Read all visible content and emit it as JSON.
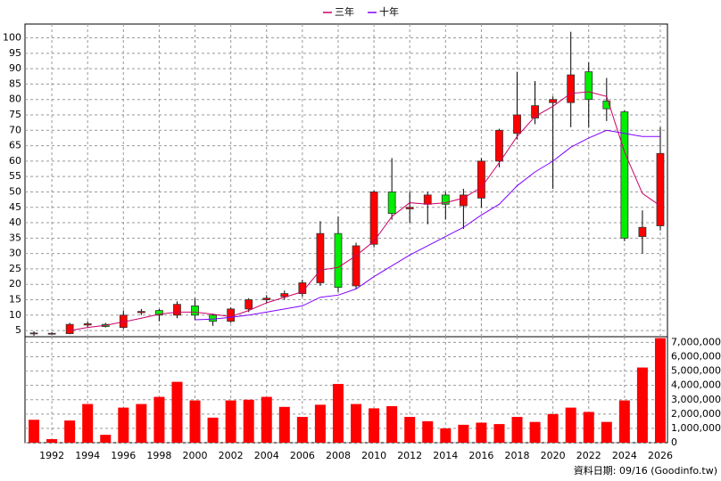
{
  "chart_data": [
    {
      "type": "candlestick",
      "x": [
        1991,
        1992,
        1993,
        1994,
        1995,
        1996,
        1997,
        1998,
        1999,
        2000,
        2001,
        2002,
        2003,
        2004,
        2005,
        2006,
        2007,
        2008,
        2009,
        2010,
        2011,
        2012,
        2013,
        2014,
        2015,
        2016,
        2017,
        2018,
        2019,
        2020,
        2021,
        2022,
        2023,
        2024,
        2025,
        2026
      ],
      "open": [
        4,
        4,
        4,
        6.8,
        7,
        6,
        10.8,
        11.5,
        10,
        13,
        10,
        8,
        12,
        15,
        16,
        17,
        20.5,
        36.5,
        19.5,
        33,
        50,
        44.5,
        46,
        49,
        45.5,
        48,
        60,
        69,
        74,
        79,
        79,
        89,
        79.5,
        76,
        35.5,
        39
      ],
      "high": [
        4.8,
        4.5,
        7.5,
        8,
        7.5,
        11.5,
        12,
        12,
        14.5,
        15.5,
        10.5,
        12.5,
        15.5,
        16.5,
        18,
        21.5,
        40.5,
        42,
        33.5,
        50.5,
        61,
        50,
        50,
        50,
        51,
        61,
        70.5,
        89,
        86,
        81,
        102,
        92,
        87,
        76.5,
        44,
        71
      ],
      "low": [
        3.3,
        3.7,
        3.8,
        6,
        6,
        5.5,
        10,
        8,
        9,
        8.5,
        6.5,
        7.5,
        11,
        14,
        15,
        16,
        19.5,
        17.5,
        18.5,
        32,
        41,
        40,
        39.5,
        41,
        38,
        45,
        58,
        67,
        72,
        51,
        71,
        71,
        73,
        34,
        30,
        37.5
      ],
      "close": [
        4.2,
        4.1,
        7,
        7.2,
        6.3,
        10,
        11.2,
        10,
        13.5,
        10,
        8,
        12,
        15,
        15.5,
        17,
        20.5,
        36.5,
        19,
        32.5,
        50,
        43,
        45,
        49,
        46,
        49,
        60,
        70,
        75,
        78,
        80,
        88,
        80,
        77,
        35,
        38.5,
        62.5
      ],
      "up_color": "#ff0000",
      "down_color": "#00ee00",
      "series": [
        {
          "name": "三年",
          "color": "#cc0066",
          "values": [
            null,
            null,
            5,
            6,
            6.7,
            7.8,
            9,
            10.3,
            11,
            11,
            10.3,
            9.5,
            11.5,
            14,
            15.8,
            17.6,
            24.6,
            25.5,
            29.3,
            34,
            42,
            46.5,
            46,
            46.5,
            48,
            51.5,
            59.5,
            68,
            74.5,
            77.8,
            82,
            82.5,
            81,
            63,
            49.5,
            45.5
          ]
        },
        {
          "name": "十年",
          "color": "#8000ff",
          "values": [
            null,
            null,
            null,
            null,
            null,
            null,
            null,
            null,
            null,
            8.5,
            8.7,
            9.3,
            10,
            11,
            12,
            13,
            15.8,
            16.5,
            18.5,
            22.5,
            26,
            29.5,
            32.5,
            35.5,
            38.5,
            42.5,
            46,
            52,
            56.5,
            60,
            64.5,
            67.5,
            70,
            69,
            68,
            68
          ]
        }
      ],
      "xlim": [
        1990.5,
        2026.4
      ],
      "ylim": [
        3,
        104.5
      ],
      "yticks": [
        5,
        10,
        15,
        20,
        25,
        30,
        35,
        40,
        45,
        50,
        55,
        60,
        65,
        70,
        75,
        80,
        85,
        90,
        95,
        100
      ],
      "grid": true,
      "legend": "top"
    },
    {
      "type": "bar",
      "x": [
        1991,
        1992,
        1993,
        1994,
        1995,
        1996,
        1997,
        1998,
        1999,
        2000,
        2001,
        2002,
        2003,
        2004,
        2005,
        2006,
        2007,
        2008,
        2009,
        2010,
        2011,
        2012,
        2013,
        2014,
        2015,
        2016,
        2017,
        2018,
        2019,
        2020,
        2021,
        2022,
        2023,
        2024,
        2025,
        2026
      ],
      "values": [
        1600000,
        250000,
        1550000,
        2700000,
        550000,
        2450000,
        2700000,
        3200000,
        4250000,
        2950000,
        1750000,
        2950000,
        3000000,
        3200000,
        2500000,
        1800000,
        2650000,
        4100000,
        2700000,
        2400000,
        2550000,
        1800000,
        1500000,
        1000000,
        1250000,
        1400000,
        1300000,
        1800000,
        1450000,
        2000000,
        2450000,
        2150000,
        1450000,
        2950000,
        5250000,
        7300000
      ],
      "color": "#ff0000",
      "xlim": [
        1990.5,
        2026.4
      ],
      "xticks": [
        1992,
        1994,
        1996,
        1998,
        2000,
        2002,
        2004,
        2006,
        2008,
        2010,
        2012,
        2014,
        2016,
        2018,
        2020,
        2022,
        2024,
        2026
      ],
      "ylim": [
        0,
        7400000
      ],
      "yticks": [
        0,
        {
          "value": 1000000,
          "label": "1,000,000"
        },
        {
          "value": 2000000,
          "label": "2,000,000"
        },
        {
          "value": 3000000,
          "label": "3,000,000"
        },
        {
          "value": 4000000,
          "label": "4,000,000"
        },
        {
          "value": 5000000,
          "label": "5,000,000"
        },
        {
          "value": 6000000,
          "label": "6,000,000"
        },
        {
          "value": 7000000,
          "label": "7,000,000"
        }
      ],
      "grid": true
    }
  ],
  "footer": "資料日期: 09/16 (Goodinfo.tw)"
}
